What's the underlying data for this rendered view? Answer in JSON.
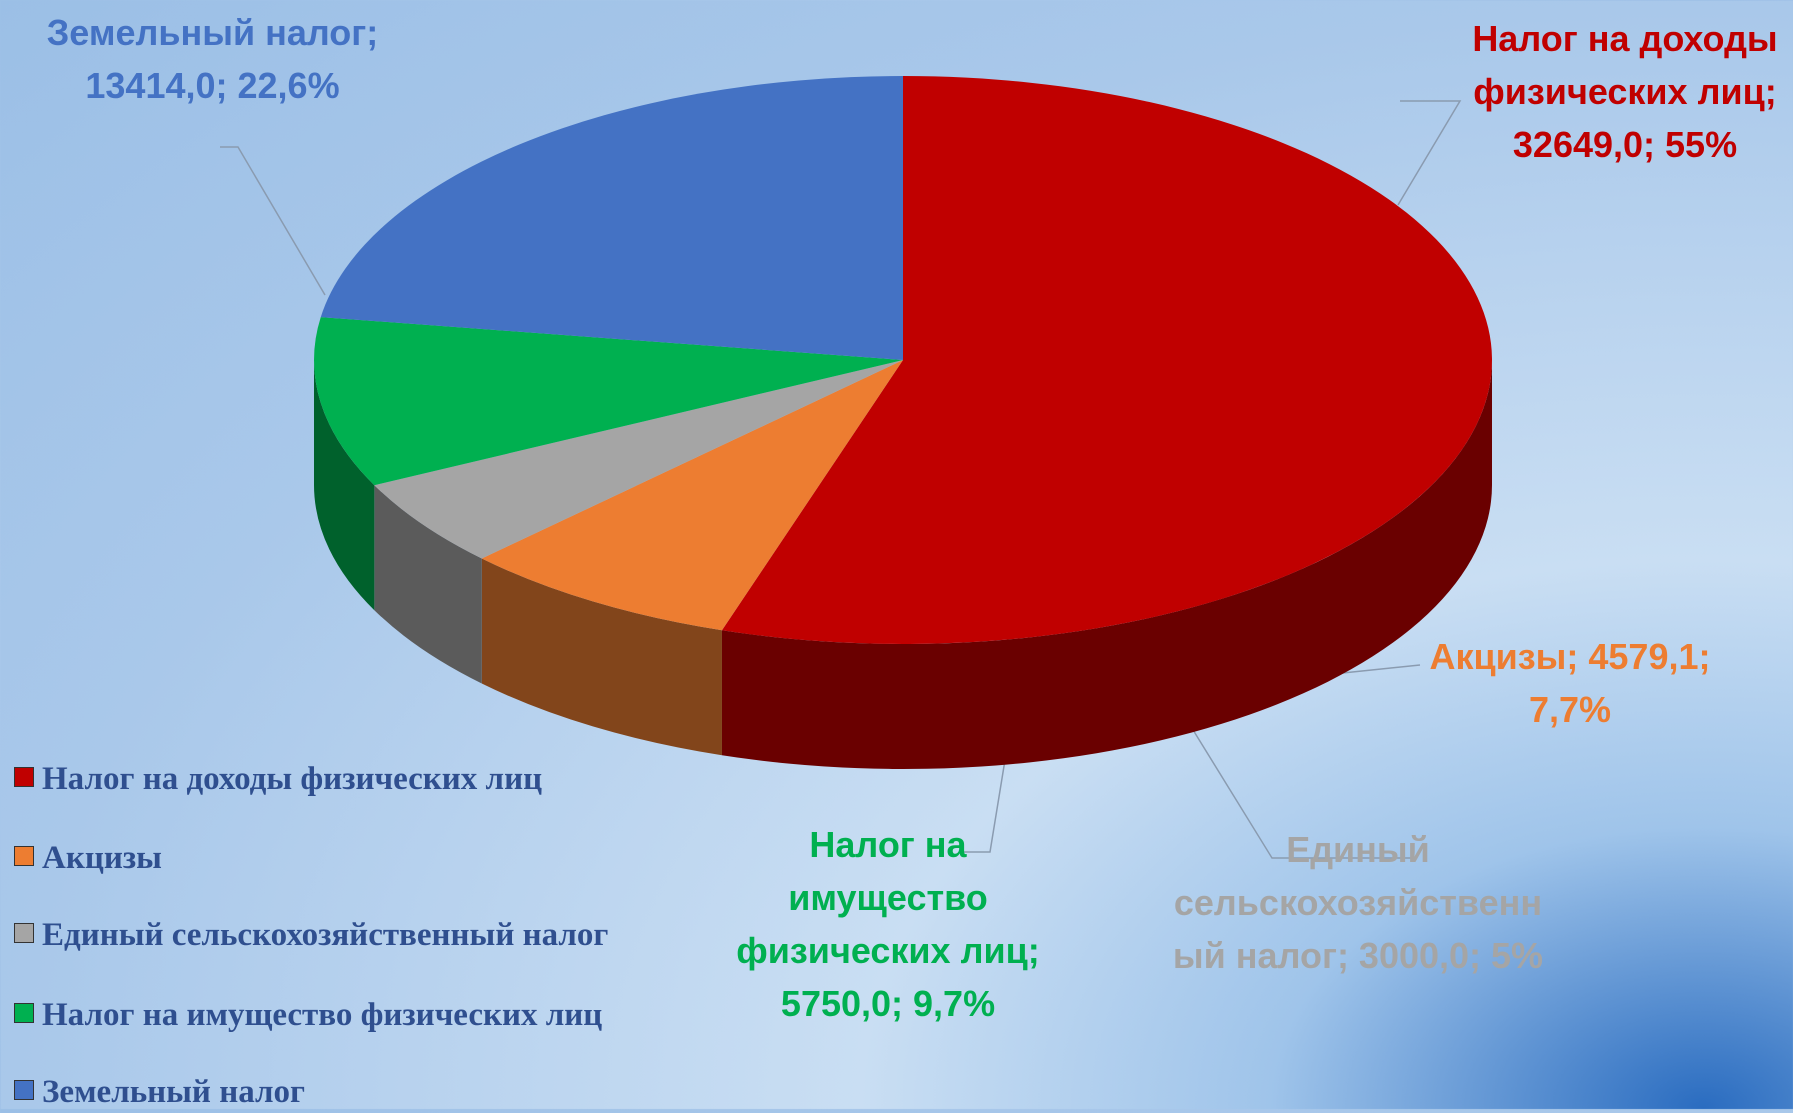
{
  "chart_data": {
    "type": "pie3d",
    "categories": [
      "Налог на доходы физических лиц",
      "Акцизы",
      "Единый сельскохозяйственный налог",
      "Налог на имущество физических лиц",
      "Земельный налог"
    ],
    "values": [
      32649.0,
      4579.1,
      3000.0,
      5750.0,
      13414.0
    ],
    "value_labels": [
      "Налог на доходы физических лиц; 32649,0; 55%",
      "Акцизы; 4579,1; 7,7%",
      "Единый сельскохозяйственный налог; 3000,0; 5%",
      "Налог на имущество физических лиц; 5750,0; 9,7%",
      "Земельный налог; 13414,0; 22,6%"
    ],
    "colors": [
      "#c00000",
      "#ed7d31",
      "#a5a5a5",
      "#00b050",
      "#4472c4"
    ],
    "legend": "bottom-left"
  }
}
